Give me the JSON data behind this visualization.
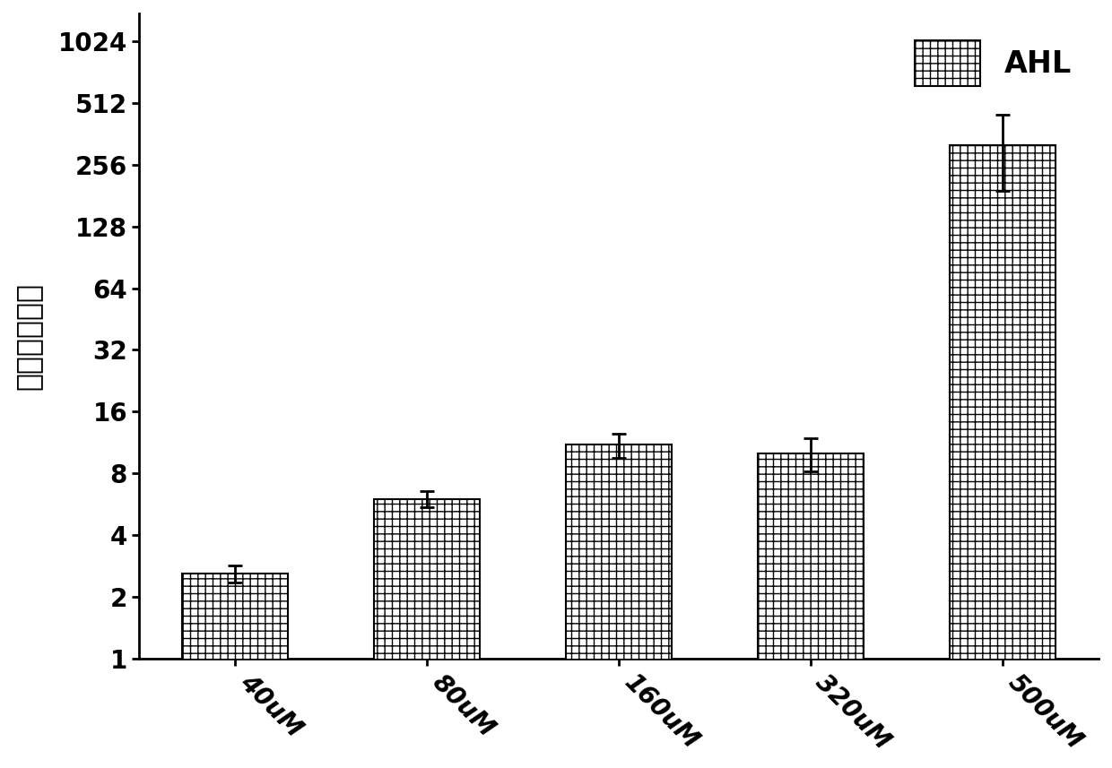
{
  "categories": [
    "40uM",
    "80uM",
    "160uM",
    "320uM",
    "500uM"
  ],
  "values": [
    2.6,
    6.0,
    11.0,
    10.0,
    320.0
  ],
  "errors": [
    0.25,
    0.55,
    1.5,
    1.8,
    130.0
  ],
  "bar_color": "#ffffff",
  "bar_hatch": "++",
  "bar_edgecolor": "#000000",
  "ylabel": "增效比（倍）",
  "legend_label": "AHL",
  "yticks": [
    1,
    2,
    4,
    8,
    16,
    32,
    64,
    128,
    256,
    512,
    1024
  ],
  "ytick_labels": [
    "1",
    "2",
    "4",
    "8",
    "16",
    "32",
    "64",
    "128",
    "256",
    "512",
    "1024"
  ],
  "ylim_log": [
    1,
    1400
  ],
  "figsize": [
    12.4,
    8.57
  ],
  "dpi": 100,
  "bar_width": 0.55,
  "tick_fontsize": 20,
  "label_fontsize": 24,
  "legend_fontsize": 24,
  "xtick_rotation": -45,
  "capsize": 6,
  "error_linewidth": 2.0,
  "background_color": "#ffffff"
}
